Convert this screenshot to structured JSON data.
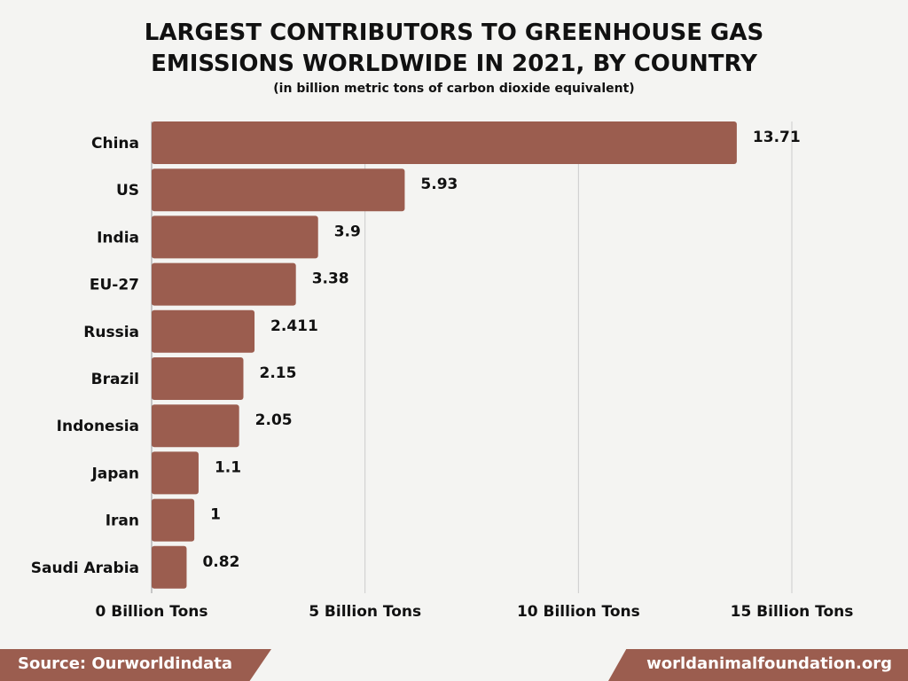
{
  "chart_data": {
    "type": "bar",
    "orientation": "horizontal",
    "title_line1": "LARGEST CONTRIBUTORS TO GREENHOUSE GAS",
    "title_line2": "EMISSIONS WORLDWIDE IN 2021, BY COUNTRY",
    "subtitle": "(in billion metric tons of carbon dioxide equivalent)",
    "categories": [
      "China",
      "US",
      "India",
      "EU-27",
      "Russia",
      "Brazil",
      "Indonesia",
      "Japan",
      "Iran",
      "Saudi Arabia"
    ],
    "values": [
      13.71,
      5.93,
      3.9,
      3.38,
      2.411,
      2.15,
      2.05,
      1.1,
      1,
      0.82
    ],
    "value_labels": [
      "13.71",
      "5.93",
      "3.9",
      "3.38",
      "2.411",
      "2.15",
      "2.05",
      "1.1",
      "1",
      "0.82"
    ],
    "xticks": [
      0,
      5,
      10,
      15
    ],
    "xtick_labels": [
      "0 Billion Tons",
      "5 Billion Tons",
      "10 Billion Tons",
      "15 Billion Tons"
    ],
    "xlim": [
      0,
      15
    ],
    "grid": "vertical",
    "bar_color": "#9b5d4f"
  },
  "footer": {
    "source": "Source:  Ourworldindata",
    "site": "worldanimalfoundation.org"
  },
  "colors": {
    "background": "#f4f4f2",
    "accent": "#9b5d4f",
    "grid": "#cccccc"
  }
}
